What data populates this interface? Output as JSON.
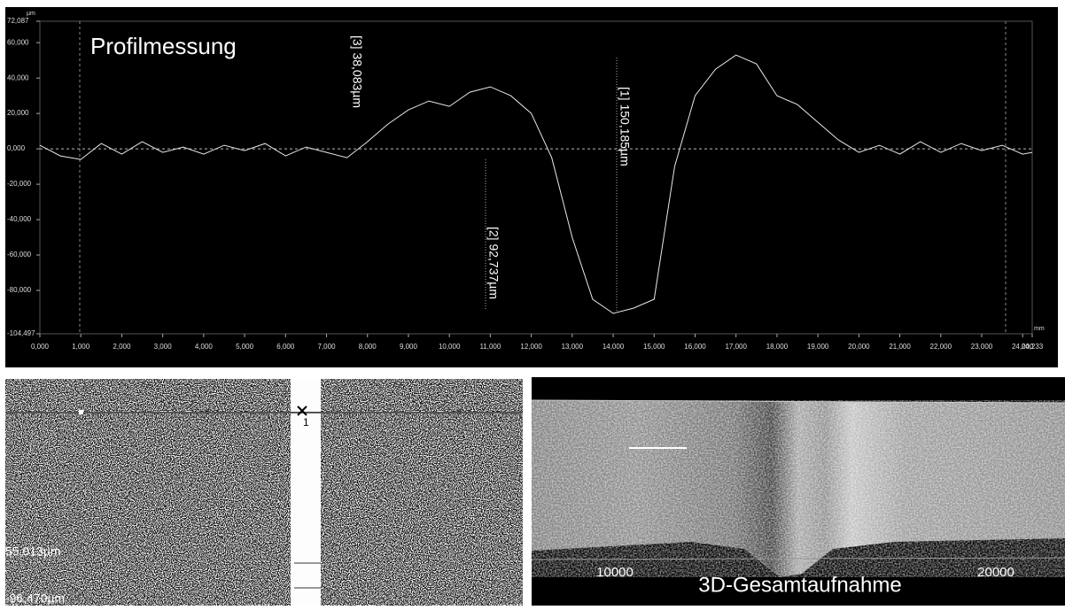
{
  "chart_data": {
    "type": "line",
    "title": "Profilmessung",
    "y_unit": "µm",
    "x_unit": "mm",
    "color": "#e8e8e8",
    "x": [
      0,
      0.5,
      1,
      1.5,
      2,
      2.5,
      3,
      3.5,
      4,
      4.5,
      5,
      5.5,
      6,
      6.5,
      7,
      7.5,
      8,
      8.5,
      9,
      9.5,
      10,
      10.5,
      11,
      11.5,
      12,
      12.5,
      13,
      13.5,
      14,
      14.5,
      15,
      15.5,
      16,
      16.5,
      17,
      17.5,
      18,
      18.5,
      19,
      19.5,
      20,
      20.5,
      21,
      21.5,
      22,
      22.5,
      23,
      23.5,
      24,
      24.233
    ],
    "values": [
      2,
      -4,
      -6,
      3,
      -3,
      4,
      -2,
      1,
      -3,
      2,
      -1,
      3,
      -4,
      1,
      -2,
      -5,
      4,
      14,
      22,
      27,
      24,
      32,
      35,
      30,
      20,
      -5,
      -50,
      -85,
      -93,
      -90,
      -85,
      -10,
      30,
      45,
      53,
      48,
      30,
      25,
      15,
      5,
      -2,
      2,
      -3,
      4,
      -2,
      3,
      -1,
      2,
      -3,
      -2
    ],
    "xlim": [
      0,
      24.233
    ],
    "ylim": [
      -104.497,
      72.087
    ],
    "xticks": [
      {
        "value": 0,
        "label": "0,000"
      },
      {
        "value": 1,
        "label": "1,000"
      },
      {
        "value": 2,
        "label": "2,000"
      },
      {
        "value": 3,
        "label": "3,000"
      },
      {
        "value": 4,
        "label": "4,000"
      },
      {
        "value": 5,
        "label": "5,000"
      },
      {
        "value": 6,
        "label": "6,000"
      },
      {
        "value": 7,
        "label": "7,000"
      },
      {
        "value": 8,
        "label": "8,000"
      },
      {
        "value": 9,
        "label": "9,000"
      },
      {
        "value": 10,
        "label": "10,000"
      },
      {
        "value": 11,
        "label": "11,000"
      },
      {
        "value": 12,
        "label": "12,000"
      },
      {
        "value": 13,
        "label": "13,000"
      },
      {
        "value": 14,
        "label": "14,000"
      },
      {
        "value": 15,
        "label": "15,000"
      },
      {
        "value": 16,
        "label": "16,000"
      },
      {
        "value": 17,
        "label": "17,000"
      },
      {
        "value": 18,
        "label": "18,000"
      },
      {
        "value": 19,
        "label": "19,000"
      },
      {
        "value": 20,
        "label": "20,000"
      },
      {
        "value": 21,
        "label": "21,000"
      },
      {
        "value": 22,
        "label": "22,000"
      },
      {
        "value": 23,
        "label": "23,000"
      },
      {
        "value": 24,
        "label": "24,000"
      },
      {
        "value": 24.233,
        "label": "24,233"
      }
    ],
    "yticks": [
      {
        "value": 72.087,
        "label": "72,087"
      },
      {
        "value": 60,
        "label": "60,000"
      },
      {
        "value": 40,
        "label": "40,000"
      },
      {
        "value": 20,
        "label": "20,000"
      },
      {
        "value": 0,
        "label": "0,000"
      },
      {
        "value": -20,
        "label": "-20,000"
      },
      {
        "value": -40,
        "label": "-40,000"
      },
      {
        "value": -60,
        "label": "-60,000"
      },
      {
        "value": -80,
        "label": "-80,000"
      },
      {
        "value": -104.497,
        "label": "-104,497"
      }
    ],
    "annotations": [
      "[3] 38,083µm",
      "[2] 92,737µm",
      "[1] 150,185µm"
    ]
  },
  "left_panel": {
    "marker": "1",
    "labels": [
      "55,013µm",
      "-96,470µm"
    ]
  },
  "right_panel": {
    "title": "3D-Gesamtaufnahme",
    "axis_labels": [
      "10000",
      "20000"
    ]
  }
}
